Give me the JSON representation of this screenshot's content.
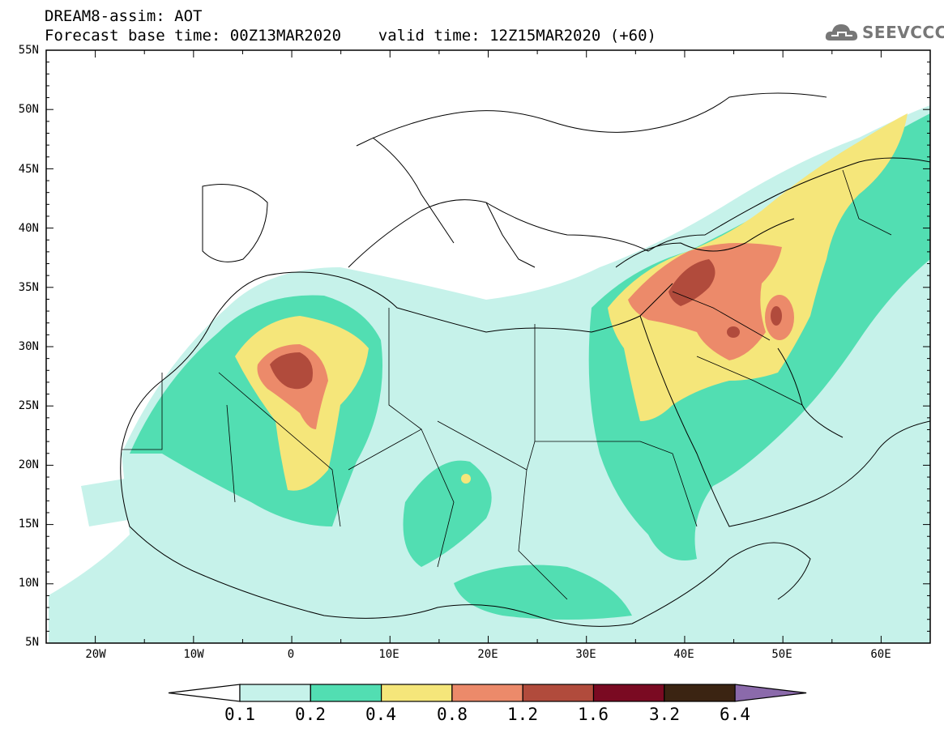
{
  "header": {
    "line1": "DREAM8-assim: AOT",
    "line2": "Forecast base time: 00Z13MAR2020    valid time: 12Z15MAR2020 (+60)"
  },
  "logo": {
    "text": "SEEVCCC",
    "icon": "cloud-icon"
  },
  "map": {
    "projection": "lat-lon",
    "lon_range": [
      -25,
      65
    ],
    "lat_range": [
      5,
      55
    ],
    "lat_labels": [
      "55N",
      "50N",
      "45N",
      "40N",
      "35N",
      "30N",
      "25N",
      "20N",
      "15N",
      "10N",
      "5N"
    ],
    "lon_labels": [
      "20W",
      "10W",
      "0",
      "10E",
      "20E",
      "30E",
      "40E",
      "50E",
      "60E"
    ],
    "variable": "AOT"
  },
  "colorbar": {
    "labels": [
      "0.1",
      "0.2",
      "0.4",
      "0.8",
      "1.2",
      "1.6",
      "3.2",
      "6.4"
    ],
    "colors": [
      "#ffffff",
      "#c6f2ea",
      "#52deb2",
      "#f5e67a",
      "#ec8a6a",
      "#b14b3c",
      "#7a0a22",
      "#3b2412",
      "#8b6aab"
    ]
  }
}
